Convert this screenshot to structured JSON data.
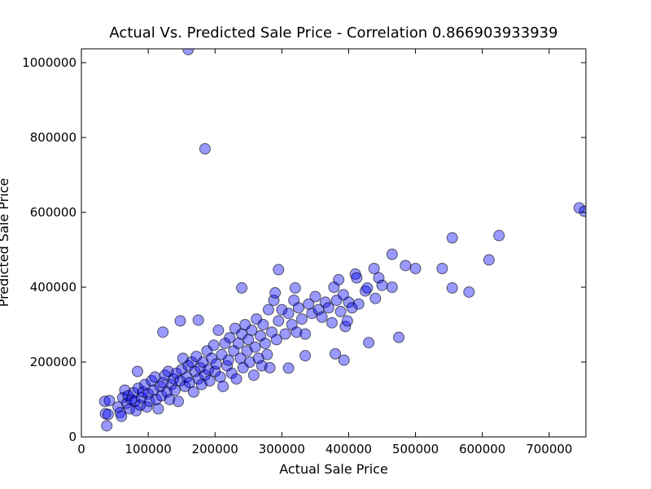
{
  "chart_data": {
    "type": "scatter",
    "title": "Actual Vs. Predicted Sale Price - Correlation 0.866903933939",
    "x_label": "Actual Sale Price",
    "y_label": "Predicted Sale Price",
    "color": "#0000ff",
    "xlim": [
      0,
      755000
    ],
    "ylim": [
      0,
      1037000
    ],
    "xticks": [
      0,
      100000,
      200000,
      300000,
      400000,
      500000,
      600000,
      700000
    ],
    "yticks": [
      0,
      200000,
      400000,
      600000,
      800000,
      1000000
    ],
    "x": [
      160000,
      185000,
      745000,
      753000,
      555000,
      625000,
      465000,
      610000,
      485000,
      500000,
      540000,
      295000,
      555000,
      580000,
      475000,
      430000,
      380000,
      393000,
      335000,
      310000,
      240000,
      148000,
      175000,
      122000,
      38000,
      35000,
      42000,
      36000,
      40000,
      55000,
      58000,
      60000,
      62000,
      65000,
      68000,
      70000,
      72000,
      75000,
      78000,
      80000,
      82000,
      84000,
      85000,
      88000,
      90000,
      92000,
      95000,
      98000,
      100000,
      102000,
      105000,
      108000,
      110000,
      112000,
      115000,
      118000,
      120000,
      122000,
      125000,
      128000,
      130000,
      132000,
      135000,
      138000,
      140000,
      142000,
      145000,
      148000,
      150000,
      152000,
      155000,
      158000,
      160000,
      162000,
      165000,
      168000,
      170000,
      172000,
      175000,
      178000,
      180000,
      182000,
      185000,
      188000,
      190000,
      192000,
      195000,
      198000,
      200000,
      202000,
      205000,
      208000,
      210000,
      212000,
      215000,
      218000,
      220000,
      222000,
      225000,
      228000,
      230000,
      232000,
      235000,
      238000,
      240000,
      242000,
      245000,
      248000,
      250000,
      252000,
      255000,
      258000,
      260000,
      262000,
      265000,
      268000,
      270000,
      272000,
      275000,
      278000,
      280000,
      282000,
      285000,
      288000,
      290000,
      292000,
      295000,
      300000,
      305000,
      310000,
      315000,
      318000,
      320000,
      322000,
      325000,
      330000,
      335000,
      340000,
      345000,
      350000,
      355000,
      360000,
      365000,
      370000,
      375000,
      378000,
      382000,
      385000,
      388000,
      392000,
      395000,
      398000,
      400000,
      405000,
      410000,
      412000,
      415000,
      425000,
      428000,
      438000,
      440000,
      445000,
      450000,
      465000
    ],
    "y": [
      1035000,
      770000,
      612000,
      603000,
      532000,
      538000,
      488000,
      473000,
      458000,
      450000,
      450000,
      447000,
      398000,
      387000,
      266000,
      252000,
      222000,
      205000,
      217000,
      184000,
      398000,
      310000,
      312000,
      280000,
      30000,
      95000,
      97000,
      62000,
      60000,
      80000,
      65000,
      55000,
      105000,
      125000,
      90000,
      110000,
      75000,
      100000,
      118000,
      95000,
      70000,
      175000,
      130000,
      85000,
      105000,
      120000,
      140000,
      80000,
      115000,
      95000,
      150000,
      125000,
      160000,
      100000,
      75000,
      135000,
      110000,
      145000,
      165000,
      120000,
      175000,
      100000,
      140000,
      155000,
      125000,
      170000,
      95000,
      150000,
      180000,
      210000,
      135000,
      160000,
      190000,
      145000,
      200000,
      120000,
      175000,
      215000,
      155000,
      185000,
      140000,
      200000,
      165000,
      230000,
      180000,
      150000,
      210000,
      245000,
      175000,
      195000,
      285000,
      160000,
      220000,
      135000,
      250000,
      190000,
      205000,
      265000,
      170000,
      230000,
      290000,
      155000,
      250000,
      210000,
      275000,
      185000,
      300000,
      230000,
      260000,
      200000,
      285000,
      165000,
      240000,
      315000,
      210000,
      270000,
      190000,
      300000,
      250000,
      220000,
      340000,
      185000,
      280000,
      365000,
      385000,
      260000,
      310000,
      340000,
      275000,
      330000,
      300000,
      365000,
      398000,
      280000,
      345000,
      315000,
      275000,
      355000,
      330000,
      375000,
      340000,
      320000,
      360000,
      345000,
      305000,
      400000,
      365000,
      420000,
      335000,
      380000,
      295000,
      310000,
      360000,
      345000,
      435000,
      425000,
      355000,
      390000,
      398000,
      450000,
      370000,
      425000,
      405000,
      400000
    ]
  }
}
